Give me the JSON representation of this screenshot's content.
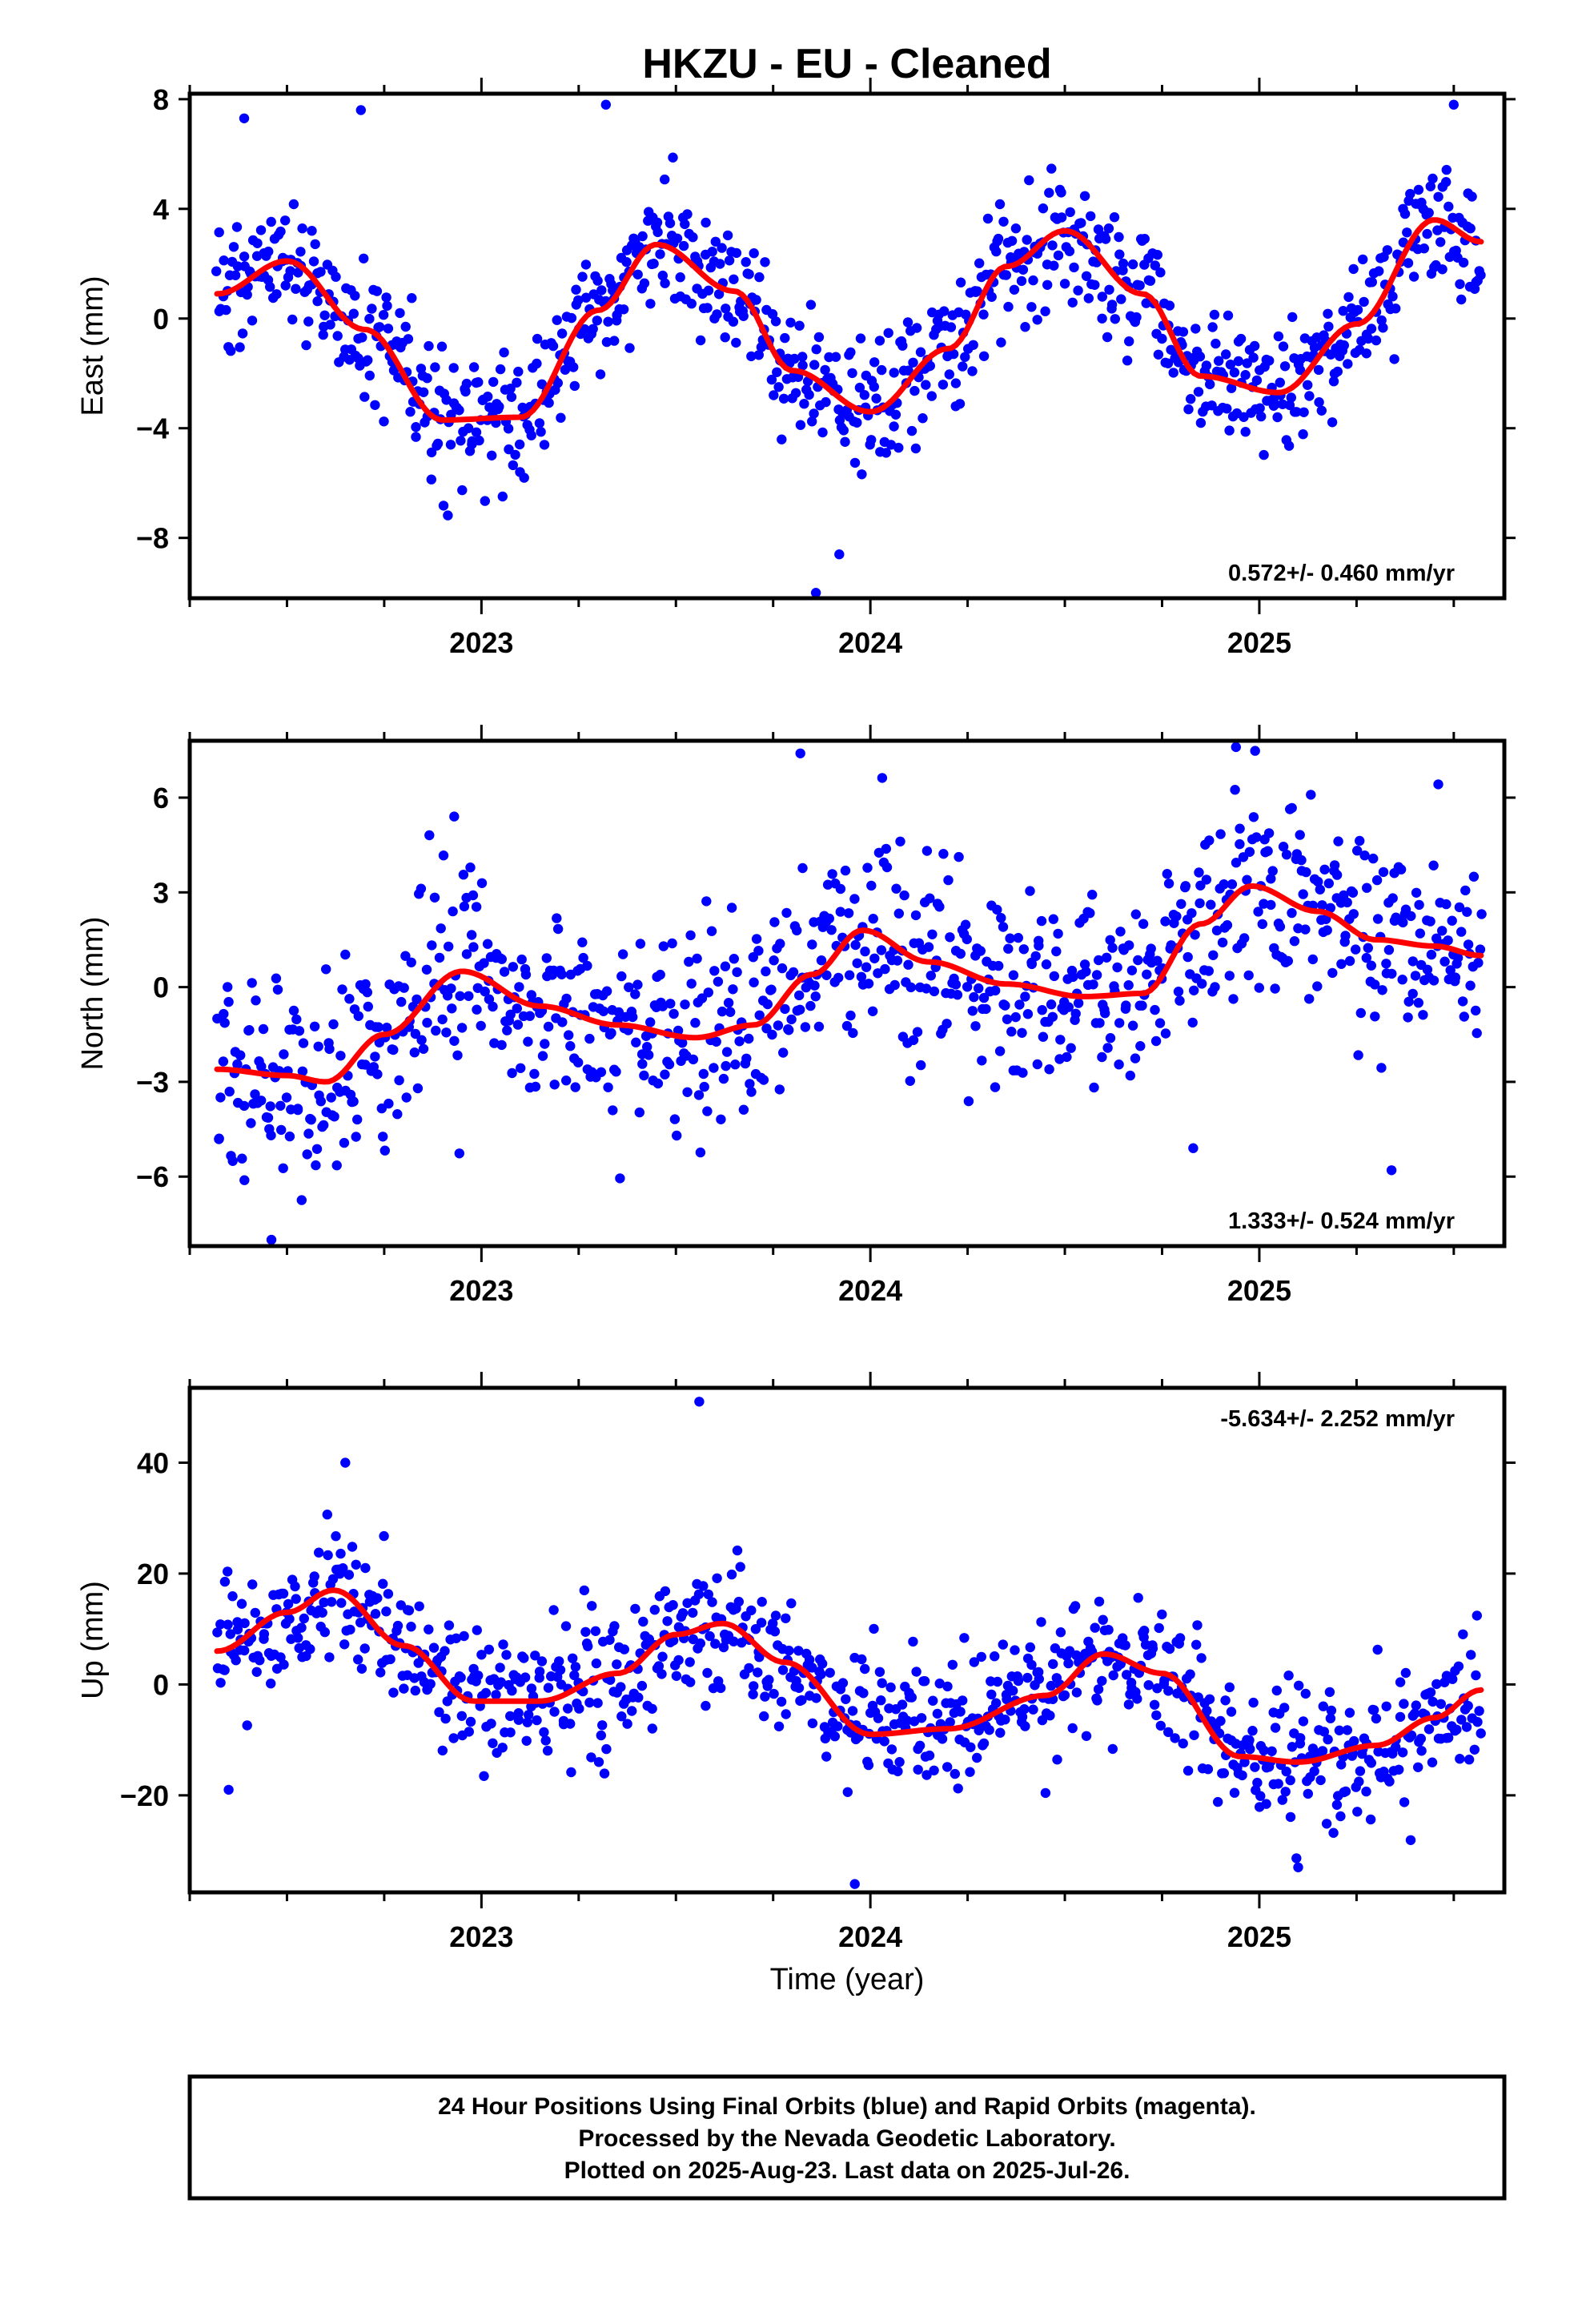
{
  "chart_data": [
    {
      "type": "scatter",
      "title": "HKZU  - EU - Cleaned",
      "ylabel": "East (mm)",
      "xlabel": "",
      "xlim": [
        2022.25,
        2025.63
      ],
      "ylim": [
        -10.2,
        8.2
      ],
      "yticks": [
        8,
        4,
        0,
        -4,
        -8
      ],
      "yticklabels": [
        "8",
        "4",
        "0",
        "−4",
        "−8"
      ],
      "xticks": [
        2023,
        2024,
        2025
      ],
      "xticklabels": [
        "2023",
        "2024",
        "2025"
      ],
      "rate_text": "0.572+/- 0.460 mm/yr",
      "rate_position": "bottom-right",
      "series": [
        {
          "color": "#0000ff",
          "kind": "points",
          "x_start": 2022.32,
          "x_end": 2025.57,
          "n": 900,
          "noise": 1.2,
          "outliers": [
            [
              2023.86,
              -10.0
            ],
            [
              2023.92,
              -8.6
            ],
            [
              2022.39,
              7.3
            ],
            [
              2022.69,
              7.6
            ],
            [
              2023.32,
              7.8
            ],
            [
              2025.5,
              7.8
            ]
          ]
        },
        {
          "color": "#ff0000",
          "kind": "fit-curve",
          "x": [
            2022.32,
            2022.5,
            2022.7,
            2022.9,
            2023.1,
            2023.3,
            2023.45,
            2023.65,
            2023.8,
            2024.0,
            2024.2,
            2024.35,
            2024.5,
            2024.7,
            2024.85,
            2025.05,
            2025.25,
            2025.45,
            2025.57
          ],
          "y": [
            0.9,
            2.1,
            -0.4,
            -3.7,
            -3.6,
            0.3,
            2.7,
            1.0,
            -1.9,
            -3.4,
            -1.1,
            1.9,
            3.2,
            0.9,
            -2.1,
            -2.7,
            -0.2,
            3.6,
            2.8
          ]
        }
      ]
    },
    {
      "type": "scatter",
      "title": "",
      "ylabel": "North (mm)",
      "xlabel": "",
      "xlim": [
        2022.25,
        2025.63
      ],
      "ylim": [
        -8.2,
        7.8
      ],
      "yticks": [
        6,
        3,
        0,
        -3,
        -6
      ],
      "yticklabels": [
        "6",
        "3",
        "0",
        "−3",
        "−6"
      ],
      "xticks": [
        2023,
        2024,
        2025
      ],
      "xticklabels": [
        "2023",
        "2024",
        "2025"
      ],
      "rate_text": "1.333+/- 0.524 mm/yr",
      "rate_position": "bottom-right",
      "series": [
        {
          "color": "#0000ff",
          "kind": "points",
          "x_start": 2022.32,
          "x_end": 2025.57,
          "n": 900,
          "noise": 1.6,
          "outliers": [
            [
              2022.46,
              -8.0
            ],
            [
              2022.93,
              5.4
            ],
            [
              2023.82,
              7.4
            ],
            [
              2024.94,
              7.6
            ],
            [
              2024.83,
              -5.1
            ],
            [
              2025.34,
              -5.8
            ]
          ]
        },
        {
          "color": "#ff0000",
          "kind": "fit-curve",
          "x": [
            2022.32,
            2022.5,
            2022.6,
            2022.75,
            2022.95,
            2023.15,
            2023.35,
            2023.55,
            2023.7,
            2023.85,
            2023.98,
            2024.15,
            2024.35,
            2024.55,
            2024.7,
            2024.85,
            2024.98,
            2025.15,
            2025.3,
            2025.45,
            2025.57
          ],
          "y": [
            -2.6,
            -2.8,
            -3.0,
            -1.5,
            0.5,
            -0.6,
            -1.2,
            -1.6,
            -1.2,
            0.4,
            1.8,
            0.8,
            0.1,
            -0.3,
            -0.2,
            2.0,
            3.2,
            2.4,
            1.5,
            1.3,
            1.0
          ]
        }
      ]
    },
    {
      "type": "scatter",
      "title": "",
      "ylabel": "Up (mm)",
      "xlabel": "Time (year)",
      "xlim": [
        2022.25,
        2025.63
      ],
      "ylim": [
        -37.5,
        53.5
      ],
      "yticks": [
        40,
        20,
        0,
        -20
      ],
      "yticklabels": [
        "40",
        "20",
        "0",
        "−20"
      ],
      "xticks": [
        2023,
        2024,
        2025
      ],
      "xticklabels": [
        "2023",
        "2024",
        "2025"
      ],
      "rate_text": "-5.634+/- 2.252 mm/yr",
      "rate_position": "top-right",
      "series": [
        {
          "color": "#0000ff",
          "kind": "points",
          "x_start": 2022.32,
          "x_end": 2025.57,
          "n": 900,
          "noise": 6.0,
          "outliers": [
            [
              2023.56,
              51.0
            ],
            [
              2022.65,
              40.0
            ],
            [
              2023.96,
              -36.0
            ],
            [
              2025.1,
              -33.0
            ],
            [
              2022.35,
              -19.0
            ]
          ]
        },
        {
          "color": "#ff0000",
          "kind": "fit-curve",
          "x": [
            2022.32,
            2022.5,
            2022.62,
            2022.8,
            2022.98,
            2023.15,
            2023.35,
            2023.5,
            2023.62,
            2023.78,
            2024.0,
            2024.2,
            2024.45,
            2024.6,
            2024.75,
            2024.95,
            2025.1,
            2025.3,
            2025.45,
            2025.57
          ],
          "y": [
            6.0,
            13.0,
            17.0,
            7.0,
            -3.0,
            -3.0,
            2.0,
            9.0,
            11.0,
            4.0,
            -9.0,
            -8.0,
            -2.0,
            5.5,
            2.0,
            -13.0,
            -14.0,
            -11.0,
            -6.0,
            -1.0
          ]
        }
      ]
    }
  ],
  "footer": {
    "line1": "24 Hour Positions Using Final Orbits (blue) and Rapid Orbits (magenta).",
    "line2": "Processed by the Nevada Geodetic Laboratory.",
    "line3": "Plotted on 2025-Aug-23. Last data on 2025-Jul-26."
  },
  "colors": {
    "points": "#0000ff",
    "fit": "#ff0000",
    "frame": "#000000"
  }
}
